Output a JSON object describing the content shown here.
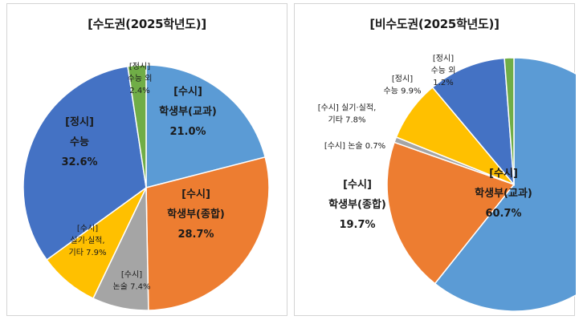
{
  "chart_data": [
    {
      "type": "pie",
      "title": "[수도권(2025학년도)]",
      "slices": [
        {
          "lines": [
            "[수시]",
            "학생부(교과)",
            "21.0%"
          ],
          "value": 21.0,
          "color": "#5b9bd5",
          "big": true
        },
        {
          "lines": [
            "[수시]",
            "학생부(종합)",
            "28.7%"
          ],
          "value": 28.7,
          "color": "#ed7d31",
          "big": true
        },
        {
          "lines": [
            "[수시]",
            "논술 7.4%"
          ],
          "value": 7.4,
          "color": "#a5a5a5",
          "big": false
        },
        {
          "lines": [
            "[수시]",
            "실기·실적,",
            "기타 7.9%"
          ],
          "value": 7.9,
          "color": "#ffc000",
          "big": false
        },
        {
          "lines": [
            "[정시]",
            "수능",
            "32.6%"
          ],
          "value": 32.6,
          "color": "#4472c4",
          "big": true
        },
        {
          "lines": [
            "[정시]",
            "수능 외",
            "2.4%"
          ],
          "value": 2.4,
          "color": "#70ad47",
          "big": false
        }
      ]
    },
    {
      "type": "pie",
      "title": "[비수도권(2025학년도)]",
      "slices": [
        {
          "lines": [
            "[수시]",
            "학생부(교과)",
            "60.7%"
          ],
          "value": 60.7,
          "color": "#5b9bd5",
          "big": true
        },
        {
          "lines": [
            "[수시]",
            "학생부(종합)",
            "19.7%"
          ],
          "value": 19.7,
          "color": "#ed7d31",
          "big": true
        },
        {
          "lines": [
            "[수시] 논술 0.7%"
          ],
          "value": 0.7,
          "color": "#a5a5a5",
          "big": false
        },
        {
          "lines": [
            "[수시] 실기·실적,",
            "기타 7.8%"
          ],
          "value": 7.8,
          "color": "#ffc000",
          "big": false
        },
        {
          "lines": [
            "[정시]",
            "수능 9.9%"
          ],
          "value": 9.9,
          "color": "#4472c4",
          "big": false
        },
        {
          "lines": [
            "[정시]",
            "수능 외",
            "1.2%"
          ],
          "value": 1.2,
          "color": "#70ad47",
          "big": false
        }
      ]
    }
  ]
}
